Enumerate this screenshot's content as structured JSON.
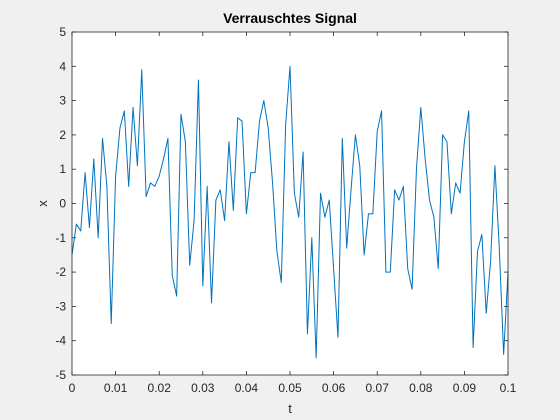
{
  "chart_data": {
    "type": "line",
    "title": "Verrauschtes Signal",
    "xlabel": "t",
    "ylabel": "x",
    "xlim": [
      0,
      0.1
    ],
    "ylim": [
      -5,
      5
    ],
    "xticks": [
      0,
      0.01,
      0.02,
      0.03,
      0.04,
      0.05,
      0.06,
      0.07,
      0.08,
      0.09,
      0.1
    ],
    "xtick_labels": [
      "0",
      "0.01",
      "0.02",
      "0.03",
      "0.04",
      "0.05",
      "0.06",
      "0.07",
      "0.08",
      "0.09",
      "0.1"
    ],
    "yticks": [
      -5,
      -4,
      -3,
      -2,
      -1,
      0,
      1,
      2,
      3,
      4,
      5
    ],
    "ytick_labels": [
      "-5",
      "-4",
      "-3",
      "-2",
      "-1",
      "0",
      "1",
      "2",
      "3",
      "4",
      "5"
    ],
    "grid": false,
    "box": true,
    "line_color": "#0072bd",
    "series": [
      {
        "x": [
          0,
          0.001,
          0.002,
          0.003,
          0.004,
          0.005,
          0.006,
          0.007,
          0.008,
          0.009,
          0.01,
          0.011,
          0.012,
          0.013,
          0.014,
          0.015,
          0.016,
          0.017,
          0.018,
          0.019,
          0.02,
          0.021,
          0.022,
          0.023,
          0.024,
          0.025,
          0.026,
          0.027,
          0.028,
          0.029,
          0.03,
          0.031,
          0.032,
          0.033,
          0.034,
          0.035,
          0.036,
          0.037,
          0.038,
          0.039,
          0.04,
          0.041,
          0.042,
          0.043,
          0.044,
          0.045,
          0.046,
          0.047,
          0.048,
          0.049,
          0.05,
          0.051,
          0.052,
          0.053,
          0.054,
          0.055,
          0.056,
          0.057,
          0.058,
          0.059,
          0.06,
          0.061,
          0.062,
          0.063,
          0.064,
          0.065,
          0.066,
          0.067,
          0.068,
          0.069,
          0.07,
          0.071,
          0.072,
          0.073,
          0.074,
          0.075,
          0.076,
          0.077,
          0.078,
          0.079,
          0.08,
          0.081,
          0.082,
          0.083,
          0.084,
          0.085,
          0.086,
          0.087,
          0.088,
          0.089,
          0.09,
          0.091,
          0.092,
          0.093,
          0.094,
          0.095,
          0.096,
          0.097,
          0.098,
          0.099,
          0.1
        ],
        "values": [
          -1.5,
          -0.6,
          -0.8,
          0.9,
          -0.7,
          1.3,
          -1.0,
          1.9,
          0.5,
          -3.5,
          0.8,
          2.2,
          2.7,
          0.5,
          2.8,
          1.1,
          3.9,
          0.2,
          0.6,
          0.5,
          0.8,
          1.3,
          1.9,
          -2.1,
          -2.7,
          2.6,
          1.8,
          -1.8,
          -0.5,
          3.6,
          -2.4,
          0.5,
          -2.9,
          0.1,
          0.4,
          -0.5,
          1.8,
          -0.2,
          2.5,
          2.4,
          -0.3,
          0.9,
          0.9,
          2.4,
          3.0,
          2.2,
          0.6,
          -1.4,
          -2.3,
          2.3,
          4.0,
          0.3,
          -0.4,
          1.5,
          -3.8,
          -1.0,
          -4.5,
          0.3,
          -0.4,
          0.1,
          -1.9,
          -3.9,
          1.9,
          -1.3,
          0.4,
          2.0,
          1.1,
          -1.5,
          -0.3,
          -0.3,
          2.1,
          2.7,
          -2.0,
          -2.0,
          0.4,
          0.1,
          0.5,
          -1.9,
          -2.5,
          1.0,
          2.8,
          1.3,
          0.1,
          -0.4,
          -1.9,
          2.0,
          1.8,
          -0.3,
          0.6,
          0.3,
          1.8,
          2.7,
          -4.2,
          -1.4,
          -0.9,
          -3.2,
          -1.7,
          1.1,
          -1.3,
          -4.4,
          -2.0
        ]
      }
    ]
  }
}
